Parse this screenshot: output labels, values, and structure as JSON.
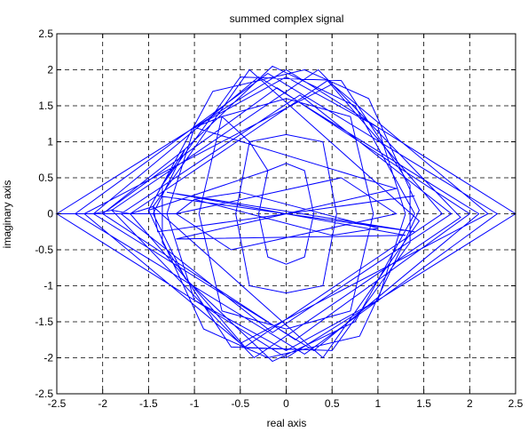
{
  "chart_data": {
    "type": "line",
    "title": "summed complex signal",
    "xlabel": "real axis",
    "ylabel": "imaginary axis",
    "xlim": [
      -2.5,
      2.5
    ],
    "ylim": [
      -2.5,
      2.5
    ],
    "xticks": [
      -2.5,
      -2,
      -1.5,
      -1,
      -0.5,
      0,
      0.5,
      1,
      1.5,
      2,
      2.5
    ],
    "xtick_labels": [
      "-2.5",
      "-2",
      "-1.5",
      "-1",
      "-0.5",
      "0",
      "0.5",
      "1",
      "1.5",
      "2",
      "2.5"
    ],
    "yticks": [
      -2.5,
      -2,
      -1.5,
      -1,
      -0.5,
      0,
      0.5,
      1,
      1.5,
      2,
      2.5
    ],
    "ytick_labels": [
      "-2.5",
      "-2",
      "-1.5",
      "-1",
      "-0.5",
      "0",
      "0.5",
      "1",
      "1.5",
      "2",
      "2.5"
    ],
    "grid": true,
    "line_color": "#0000ff",
    "series": [
      {
        "points": [
          [
            -2.5,
            0
          ],
          [
            0,
            2.0
          ],
          [
            2.5,
            0
          ],
          [
            0,
            -2.0
          ],
          [
            -2.5,
            0
          ],
          [
            -2.3,
            0
          ],
          [
            -0.2,
            1.95
          ],
          [
            2.3,
            0
          ],
          [
            0.2,
            -1.95
          ],
          [
            -2.3,
            0
          ],
          [
            -2.1,
            0
          ],
          [
            -0.3,
            1.9
          ],
          [
            2.1,
            0
          ],
          [
            0.3,
            -1.9
          ],
          [
            -2.1,
            0
          ],
          [
            -1.9,
            0.05
          ],
          [
            0.35,
            2.0
          ],
          [
            1.9,
            -0.05
          ],
          [
            -0.35,
            -2.0
          ],
          [
            -1.9,
            0.05
          ],
          [
            -1.7,
            0
          ],
          [
            0.45,
            1.85
          ],
          [
            1.7,
            0
          ],
          [
            -0.45,
            -1.85
          ],
          [
            -1.7,
            0
          ],
          [
            -1.45,
            0.1
          ],
          [
            -0.4,
            2.0
          ],
          [
            1.45,
            -0.1
          ],
          [
            0.4,
            -2.0
          ],
          [
            -1.45,
            0.1
          ],
          [
            -1.4,
            -0.25
          ],
          [
            0.0,
            0.0
          ],
          [
            1.4,
            0.25
          ],
          [
            0.0,
            0.0
          ],
          [
            -1.4,
            0.25
          ],
          [
            1.4,
            -0.25
          ],
          [
            -1.3,
            0.3
          ],
          [
            0.0,
            0.0
          ],
          [
            1.3,
            -0.3
          ],
          [
            -1.2,
            -0.35
          ],
          [
            0.0,
            0.0
          ],
          [
            1.2,
            0.35
          ],
          [
            -1.0,
            1.2
          ],
          [
            0.0,
            1.9
          ],
          [
            1.0,
            1.2
          ],
          [
            1.3,
            0.0
          ],
          [
            1.0,
            -1.2
          ],
          [
            0.0,
            -1.9
          ],
          [
            -1.0,
            -1.2
          ],
          [
            -1.3,
            0.0
          ],
          [
            -1.0,
            1.2
          ],
          [
            -0.7,
            1.35
          ],
          [
            0.0,
            1.6
          ],
          [
            0.7,
            1.35
          ],
          [
            0.95,
            0.0
          ],
          [
            0.7,
            -1.35
          ],
          [
            0.0,
            -1.6
          ],
          [
            -0.7,
            -1.35
          ],
          [
            -0.95,
            0.0
          ],
          [
            -0.7,
            1.35
          ],
          [
            -0.4,
            1.0
          ],
          [
            0.0,
            1.1
          ],
          [
            0.4,
            1.0
          ],
          [
            0.55,
            0.0
          ],
          [
            0.4,
            -1.0
          ],
          [
            0.0,
            -1.1
          ],
          [
            -0.4,
            -1.0
          ],
          [
            -0.55,
            0.0
          ],
          [
            -0.4,
            1.0
          ],
          [
            -0.2,
            0.6
          ],
          [
            0.0,
            0.7
          ],
          [
            0.2,
            0.6
          ],
          [
            0.3,
            0.0
          ],
          [
            0.2,
            -0.6
          ],
          [
            0.0,
            -0.7
          ],
          [
            -0.2,
            -0.6
          ],
          [
            -0.3,
            0.0
          ],
          [
            -0.2,
            0.6
          ],
          [
            -1.5,
            0.05
          ],
          [
            -0.8,
            1.7
          ],
          [
            0.2,
            2.0
          ],
          [
            0.9,
            1.6
          ],
          [
            1.45,
            0.05
          ],
          [
            0.8,
            -1.7
          ],
          [
            -0.2,
            -2.0
          ],
          [
            -0.9,
            -1.6
          ],
          [
            -1.5,
            0.05
          ],
          [
            -1.35,
            0.4
          ],
          [
            -0.5,
            1.9
          ],
          [
            0.6,
            1.85
          ],
          [
            1.35,
            0.4
          ],
          [
            1.35,
            -0.4
          ],
          [
            0.5,
            -1.9
          ],
          [
            -0.6,
            -1.85
          ],
          [
            -1.35,
            -0.4
          ],
          [
            -1.35,
            0.4
          ],
          [
            -1.1,
            0.9
          ],
          [
            -0.15,
            2.05
          ],
          [
            0.75,
            1.5
          ],
          [
            1.4,
            0.0
          ],
          [
            0.75,
            -1.5
          ],
          [
            -0.15,
            -2.05
          ],
          [
            -1.1,
            -0.9
          ],
          [
            -1.45,
            0.0
          ],
          [
            -1.1,
            0.9
          ],
          [
            -2.0,
            0.0
          ],
          [
            -0.1,
            1.75
          ],
          [
            2.0,
            0.0
          ],
          [
            0.1,
            -1.75
          ],
          [
            -2.0,
            0.0
          ],
          [
            -1.8,
            0.0
          ],
          [
            0.15,
            1.65
          ],
          [
            1.8,
            0.0
          ],
          [
            -0.15,
            -1.65
          ],
          [
            -1.8,
            0.0
          ],
          [
            -2.2,
            0.0
          ],
          [
            0.5,
            1.8
          ],
          [
            2.2,
            0.0
          ],
          [
            -0.5,
            -1.8
          ],
          [
            -2.2,
            0.0
          ],
          [
            -1.2,
            0.0
          ],
          [
            0.6,
            0.5
          ],
          [
            1.2,
            0.0
          ],
          [
            -0.6,
            -0.5
          ],
          [
            -1.2,
            0.0
          ],
          [
            -1.0,
            0.2
          ],
          [
            0.5,
            -0.3
          ],
          [
            1.0,
            -0.2
          ],
          [
            -0.5,
            0.3
          ],
          [
            -1.0,
            0.2
          ]
        ]
      }
    ]
  }
}
